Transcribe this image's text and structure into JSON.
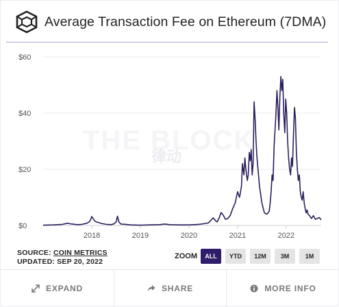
{
  "title": "Average Transaction Fee on Ethereum (7DMA)",
  "watermark": {
    "text": "THE BLOCK",
    "sub": "律动"
  },
  "source": {
    "prefix": "SOURCE: ",
    "link": "COIN METRICS",
    "updated": "UPDATED: SEP 20, 2022"
  },
  "zoom": {
    "label": "ZOOM",
    "buttons": [
      "ALL",
      "YTD",
      "12M",
      "3M",
      "1M"
    ],
    "active": "ALL"
  },
  "footer": {
    "expand": "EXPAND",
    "share": "SHARE",
    "more_info": "MORE INFO"
  },
  "colors": {
    "line": "#2b1d5c",
    "accent": "#2f1c6a",
    "rule": "#b3a3d8"
  },
  "chart_data": {
    "type": "line",
    "title": "Average Transaction Fee on Ethereum (7DMA)",
    "xlabel": "",
    "ylabel": "",
    "y_unit": "$",
    "ylim": [
      0,
      60
    ],
    "yticks": [
      "$0",
      "$20",
      "$40",
      "$60"
    ],
    "yticks_values": [
      0,
      20,
      40,
      60
    ],
    "xlim": [
      2017.0,
      2022.72
    ],
    "xticks": [
      "2018",
      "2019",
      "2020",
      "2021",
      "2022"
    ],
    "xticks_values": [
      2018,
      2019,
      2020,
      2021,
      2022
    ],
    "grid": true,
    "legend": "none",
    "series": [
      {
        "x": [
          2017.0,
          2017.2,
          2017.4,
          2017.5,
          2017.55,
          2017.6,
          2017.7,
          2017.8,
          2017.9,
          2017.95,
          2017.98,
          2018.0,
          2018.03,
          2018.06,
          2018.1,
          2018.15,
          2018.2,
          2018.3,
          2018.4,
          2018.45,
          2018.5,
          2018.53,
          2018.56,
          2018.6,
          2018.7,
          2018.8,
          2019.0,
          2019.2,
          2019.4,
          2019.5,
          2019.6,
          2019.8,
          2020.0,
          2020.2,
          2020.3,
          2020.4,
          2020.45,
          2020.5,
          2020.55,
          2020.58,
          2020.62,
          2020.66,
          2020.7,
          2020.75,
          2020.8,
          2020.85,
          2020.9,
          2020.95,
          2021.0,
          2021.04,
          2021.08,
          2021.1,
          2021.13,
          2021.15,
          2021.17,
          2021.2,
          2021.22,
          2021.24,
          2021.26,
          2021.28,
          2021.3,
          2021.32,
          2021.34,
          2021.36,
          2021.38,
          2021.4,
          2021.45,
          2021.5,
          2021.55,
          2021.6,
          2021.65,
          2021.67,
          2021.69,
          2021.71,
          2021.73,
          2021.75,
          2021.77,
          2021.79,
          2021.81,
          2021.83,
          2021.85,
          2021.87,
          2021.89,
          2021.91,
          2021.93,
          2021.95,
          2021.97,
          2021.99,
          2022.01,
          2022.03,
          2022.05,
          2022.07,
          2022.09,
          2022.11,
          2022.13,
          2022.15,
          2022.17,
          2022.19,
          2022.21,
          2022.23,
          2022.25,
          2022.27,
          2022.29,
          2022.31,
          2022.33,
          2022.35,
          2022.37,
          2022.39,
          2022.41,
          2022.43,
          2022.45,
          2022.48,
          2022.52,
          2022.56,
          2022.6,
          2022.64,
          2022.68,
          2022.72
        ],
        "values": [
          0.1,
          0.2,
          0.4,
          0.8,
          0.6,
          0.5,
          0.3,
          0.4,
          0.8,
          1.3,
          2.2,
          3.2,
          2.4,
          1.6,
          1.2,
          1.0,
          0.7,
          0.4,
          0.3,
          0.5,
          1.2,
          3.3,
          1.2,
          0.5,
          0.4,
          0.2,
          0.1,
          0.2,
          0.3,
          0.5,
          0.3,
          0.2,
          0.2,
          0.4,
          0.6,
          0.9,
          1.8,
          2.7,
          1.6,
          1.3,
          2.6,
          4.6,
          3.8,
          2.2,
          2.5,
          3.6,
          6.0,
          8.0,
          12.0,
          10.0,
          14.0,
          22.0,
          18.0,
          24.0,
          20.0,
          16.0,
          18.0,
          26.0,
          23.0,
          27.0,
          18.0,
          22.0,
          44.0,
          38.0,
          30.0,
          24.0,
          14.0,
          8.0,
          4.5,
          4.0,
          5.0,
          8.0,
          12.0,
          18.0,
          16.0,
          28.0,
          34.0,
          40.0,
          48.0,
          42.0,
          34.0,
          46.0,
          53.0,
          48.0,
          52.0,
          40.0,
          33.0,
          45.0,
          40.0,
          30.0,
          24.0,
          20.0,
          18.0,
          24.0,
          21.0,
          32.0,
          42.0,
          38.0,
          26.0,
          20.0,
          16.0,
          18.0,
          12.0,
          10.0,
          9.0,
          12.0,
          8.0,
          6.0,
          4.5,
          5.5,
          4.0,
          3.5,
          2.5,
          3.5,
          2.2,
          2.5,
          2.8,
          2.0
        ]
      }
    ]
  }
}
